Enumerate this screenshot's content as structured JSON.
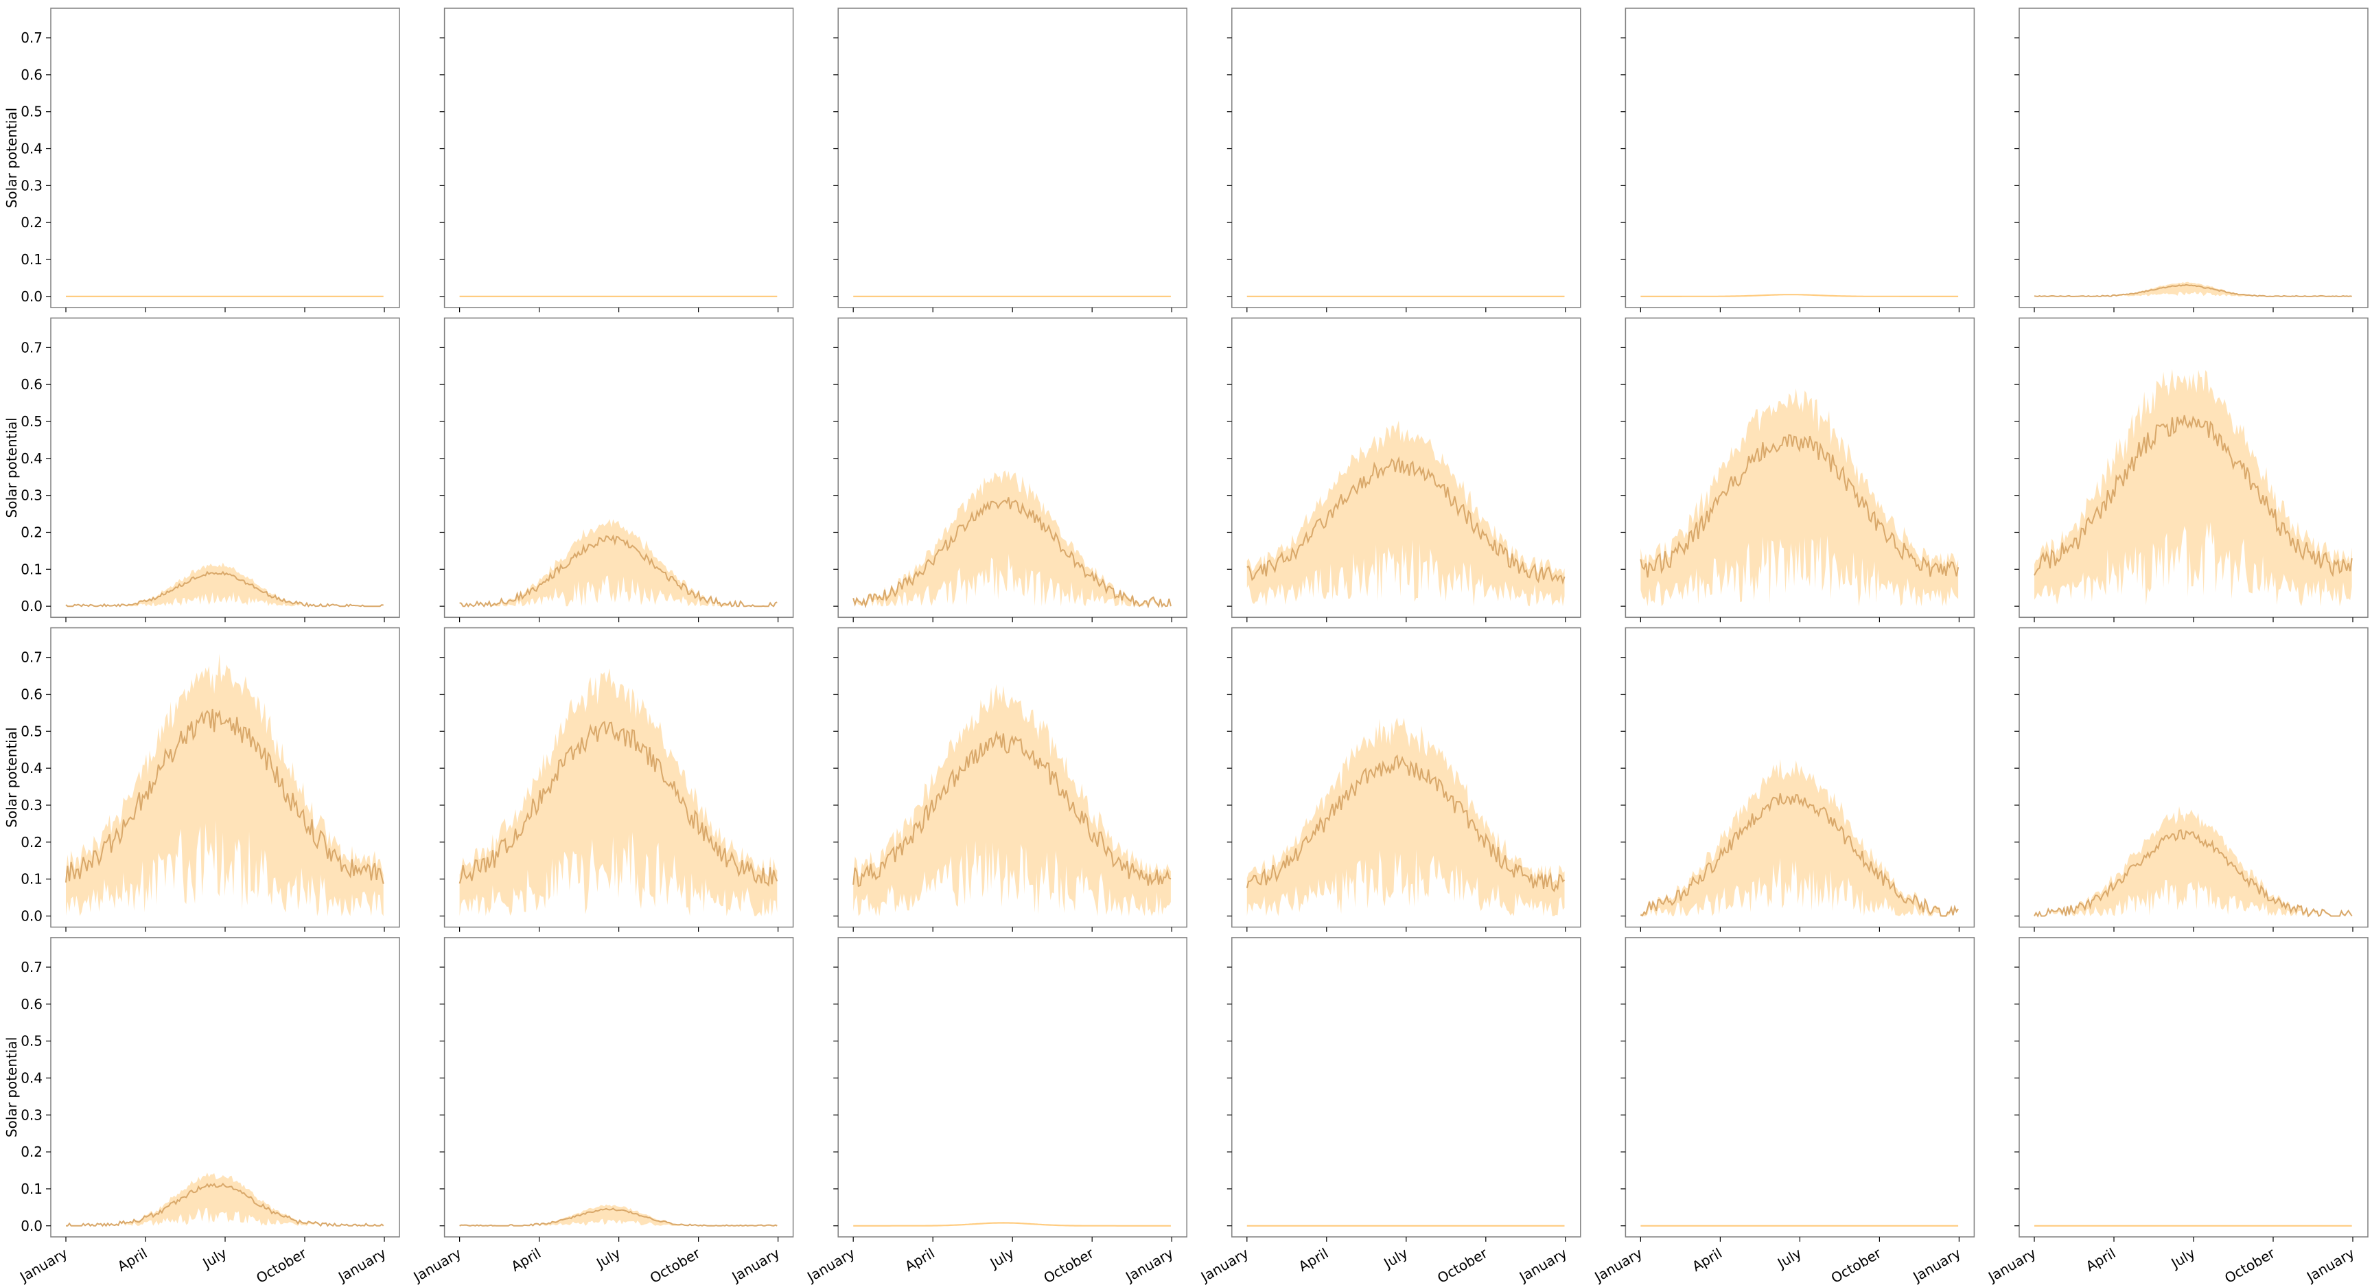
{
  "figure": {
    "rows": 4,
    "cols": 6,
    "colors": {
      "band": "#ffcc80",
      "mean_line": "#d9a86a",
      "axes": "#808080",
      "background": "#ffffff"
    }
  },
  "chart_data": {
    "type": "area",
    "shared": {
      "ylabel": "Solar potential",
      "ylim": [
        -0.03,
        0.78
      ],
      "yticks": [
        "0.0",
        "0.1",
        "0.2",
        "0.3",
        "0.4",
        "0.5",
        "0.6",
        "0.7"
      ],
      "xticks": [
        "January",
        "April",
        "July",
        "October",
        "January"
      ],
      "x_months": [
        0,
        3,
        6,
        9,
        12
      ],
      "grid": false,
      "legend": "none"
    },
    "panels": [
      {
        "peak": 0.0
      },
      {
        "peak": 0.0
      },
      {
        "peak": 0.0
      },
      {
        "peak": 0.0
      },
      {
        "peak": 0.005
      },
      {
        "peak": 0.03
      },
      {
        "peak": 0.09
      },
      {
        "peak": 0.18
      },
      {
        "peak": 0.28
      },
      {
        "peak": 0.38
      },
      {
        "peak": 0.45
      },
      {
        "peak": 0.5
      },
      {
        "peak": 0.53
      },
      {
        "peak": 0.5
      },
      {
        "peak": 0.47
      },
      {
        "peak": 0.41
      },
      {
        "peak": 0.32
      },
      {
        "peak": 0.22
      },
      {
        "peak": 0.11
      },
      {
        "peak": 0.045
      },
      {
        "peak": 0.008
      },
      {
        "peak": 0.0
      },
      {
        "peak": 0.0
      },
      {
        "peak": 0.0
      }
    ]
  }
}
